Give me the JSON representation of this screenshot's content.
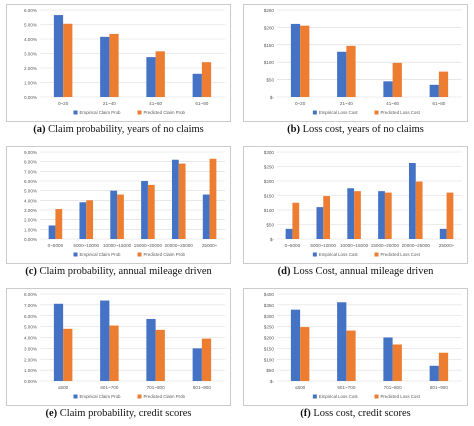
{
  "colors": {
    "empirical": "#4472c4",
    "predicted": "#ed7d31",
    "grid": "#d9d9d9",
    "axis_text": "#595959",
    "frame": "#bfbfbf"
  },
  "chart_data": [
    {
      "id": "a",
      "type": "bar",
      "caption_letter": "(a)",
      "caption_text": "Claim probability, years of no claims",
      "categories": [
        "0~20",
        "21~40",
        "41~60",
        "61~80"
      ],
      "ylim": [
        0,
        6
      ],
      "yticks": [
        "0.00%",
        "1.00%",
        "2.00%",
        "3.00%",
        "4.00%",
        "5.00%",
        "6.00%"
      ],
      "series": [
        {
          "name": "Empirical Claim Prob",
          "color": "#4472c4",
          "values": [
            5.65,
            4.15,
            2.75,
            1.6
          ]
        },
        {
          "name": "Predicted Claim Prob",
          "color": "#ed7d31",
          "values": [
            5.05,
            4.35,
            3.15,
            2.4
          ]
        }
      ]
    },
    {
      "id": "b",
      "type": "bar",
      "caption_letter": "(b)",
      "caption_text": "Loss cost, years of no claims",
      "categories": [
        "0~20",
        "21~40",
        "41~60",
        "61~80"
      ],
      "ylim": [
        0,
        250
      ],
      "yticks": [
        "$-",
        "$50",
        "$100",
        "$150",
        "$200",
        "$250"
      ],
      "series": [
        {
          "name": "Empirical Loss Cost",
          "color": "#4472c4",
          "values": [
            210,
            130,
            45,
            35
          ]
        },
        {
          "name": "Predicted Loss Cost",
          "color": "#ed7d31",
          "values": [
            205,
            147,
            98,
            73
          ]
        }
      ]
    },
    {
      "id": "c",
      "type": "bar",
      "caption_letter": "(c)",
      "caption_text": "Claim probability, annual mileage driven",
      "categories": [
        "0~5000",
        "5000~10000",
        "10000~15000",
        "15000~20000",
        "20000~25000",
        "25000+"
      ],
      "ylim": [
        0,
        9
      ],
      "yticks": [
        "0.00%",
        "1.00%",
        "2.00%",
        "3.00%",
        "4.00%",
        "5.00%",
        "6.00%",
        "7.00%",
        "8.00%",
        "9.00%"
      ],
      "series": [
        {
          "name": "Empirical Claim Prob",
          "color": "#4472c4",
          "values": [
            1.4,
            3.8,
            5.0,
            6.0,
            8.2,
            4.6
          ]
        },
        {
          "name": "Predicted Claim Prob",
          "color": "#ed7d31",
          "values": [
            3.1,
            4.0,
            4.6,
            5.6,
            7.8,
            8.3
          ]
        }
      ]
    },
    {
      "id": "d",
      "type": "bar",
      "caption_letter": "(d)",
      "caption_text": "Loss Cost, annual mileage driven",
      "categories": [
        "0~5000",
        "5000~10000",
        "10000~15000",
        "15000~20000",
        "20000~25000",
        "25000+"
      ],
      "ylim": [
        0,
        300
      ],
      "yticks": [
        "$-",
        "$50",
        "$100",
        "$150",
        "$200",
        "$250",
        "$300"
      ],
      "series": [
        {
          "name": "Empirical Loss Cost",
          "color": "#4472c4",
          "values": [
            35,
            110,
            175,
            165,
            262,
            35
          ]
        },
        {
          "name": "Predicted Loss Cost",
          "color": "#ed7d31",
          "values": [
            125,
            148,
            165,
            160,
            198,
            160
          ]
        }
      ]
    },
    {
      "id": "e",
      "type": "bar",
      "caption_letter": "(e)",
      "caption_text": "Claim probability, credit scores",
      "categories": [
        "≤600",
        "601~700",
        "701~800",
        "801~900"
      ],
      "ylim": [
        0,
        8
      ],
      "yticks": [
        "0.00%",
        "1.00%",
        "2.00%",
        "3.00%",
        "4.00%",
        "5.00%",
        "6.00%",
        "7.00%",
        "8.00%"
      ],
      "series": [
        {
          "name": "Empirical Claim Prob",
          "color": "#4472c4",
          "values": [
            7.1,
            7.4,
            5.7,
            3.0
          ]
        },
        {
          "name": "Predicted Claim Prob",
          "color": "#ed7d31",
          "values": [
            4.8,
            5.1,
            4.7,
            3.9
          ]
        }
      ]
    },
    {
      "id": "f",
      "type": "bar",
      "caption_letter": "(f)",
      "caption_text": "Loss cost, credit scores",
      "categories": [
        "≤600",
        "601~700",
        "701~800",
        "801~900"
      ],
      "ylim": [
        0,
        400
      ],
      "yticks": [
        "$-",
        "$50",
        "$100",
        "$150",
        "$200",
        "$250",
        "$300",
        "$350",
        "$400"
      ],
      "series": [
        {
          "name": "Empirical Loss Cost",
          "color": "#4472c4",
          "values": [
            328,
            362,
            200,
            70
          ]
        },
        {
          "name": "Predicted Loss Cost",
          "color": "#ed7d31",
          "values": [
            248,
            232,
            168,
            130
          ]
        }
      ]
    }
  ]
}
